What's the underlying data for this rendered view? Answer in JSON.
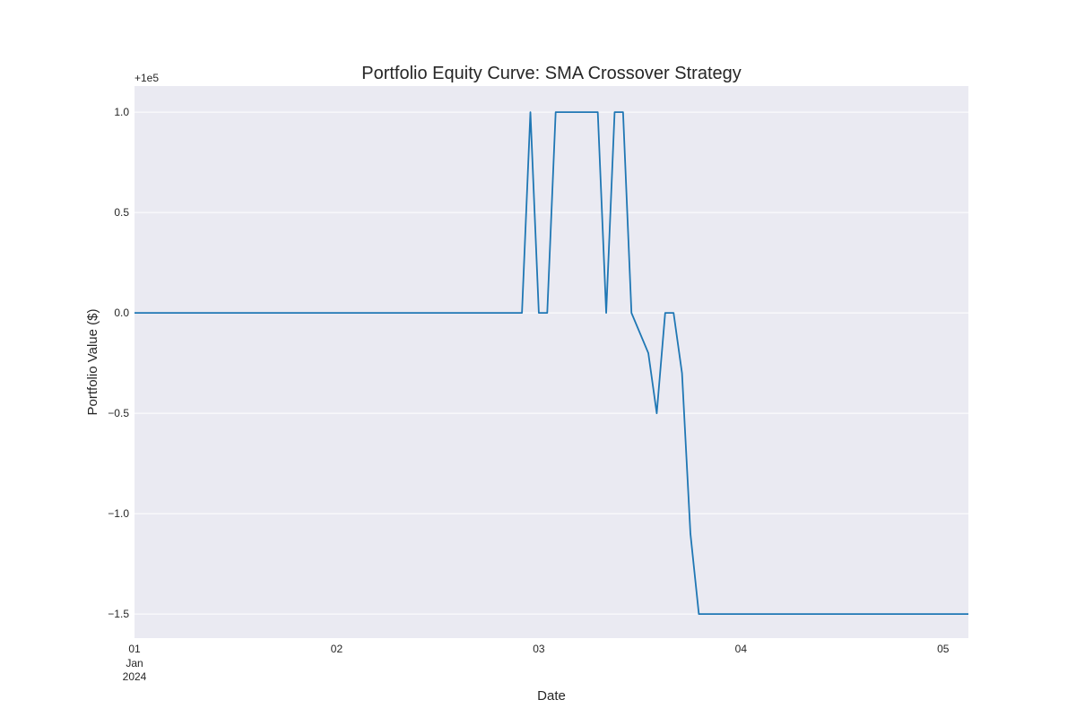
{
  "chart_data": {
    "type": "line",
    "title": "Portfolio Equity Curve: SMA Crossover Strategy",
    "xlabel": "Date",
    "ylabel": "Portfolio Value ($)",
    "y_offset_label": "+1e5",
    "y_ticks": [
      {
        "value": 1.0,
        "label": "1.0"
      },
      {
        "value": 0.5,
        "label": "0.5"
      },
      {
        "value": 0.0,
        "label": "0.0"
      },
      {
        "value": -0.5,
        "label": "−0.5"
      },
      {
        "value": -1.0,
        "label": "−1.0"
      },
      {
        "value": -1.5,
        "label": "−1.5"
      }
    ],
    "x_ticks": [
      {
        "value": "2024-01-01",
        "label": "01",
        "sublabels": [
          "Jan",
          "2024"
        ]
      },
      {
        "value": "2024-01-02",
        "label": "02"
      },
      {
        "value": "2024-01-03",
        "label": "03"
      },
      {
        "value": "2024-01-04",
        "label": "04"
      },
      {
        "value": "2024-01-05",
        "label": "05"
      }
    ],
    "xlim": [
      "2024-01-01 00:00",
      "2024-01-05 03:00"
    ],
    "ylim": [
      -1.62,
      1.13
    ],
    "grid": true,
    "colors": {
      "line": "#1f77b4",
      "plot_bg": "#eaeaf2",
      "grid": "#ffffff"
    },
    "series": [
      {
        "x": [
          "2024-01-01 00:00",
          "2024-01-02 22:00",
          "2024-01-02 23:00",
          "2024-01-03 00:00",
          "2024-01-03 01:00",
          "2024-01-03 02:00",
          "2024-01-03 07:00",
          "2024-01-03 08:00",
          "2024-01-03 09:00",
          "2024-01-03 10:00",
          "2024-01-03 11:00",
          "2024-01-03 13:00",
          "2024-01-03 14:00",
          "2024-01-03 15:00",
          "2024-01-03 16:00",
          "2024-01-03 17:00",
          "2024-01-03 18:00",
          "2024-01-03 19:00",
          "2024-01-03 20:00",
          "2024-01-05 03:00"
        ],
        "y": [
          0,
          0,
          1.0,
          0,
          0,
          1.0,
          1.0,
          0,
          1.0,
          1.0,
          0,
          -0.2,
          -0.5,
          0,
          0,
          -0.3,
          -1.1,
          -1.5,
          -1.5,
          -1.5
        ]
      }
    ]
  }
}
